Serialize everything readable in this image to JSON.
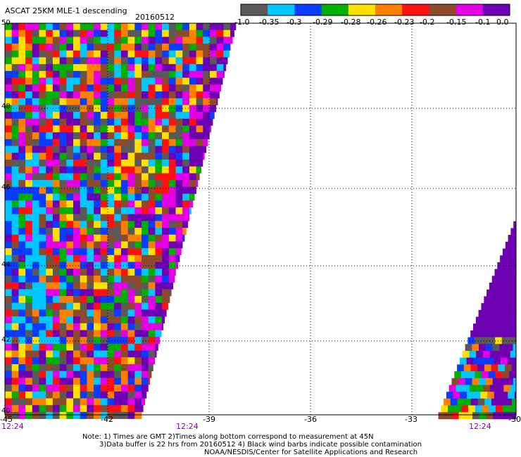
{
  "header": {
    "title": "ASCAT 25KM MLE-1 descending",
    "date": "20160512"
  },
  "colorbar": {
    "colors": [
      "#595959",
      "#00c8ff",
      "#0a3cff",
      "#00b000",
      "#ffe000",
      "#ff8000",
      "#ff1010",
      "#8c4a2a",
      "#e600e6",
      "#6e00b4"
    ],
    "labels": [
      "-1.0",
      "-0.35",
      "-0.3",
      "-0.29",
      "-0.28",
      "-0.26",
      "-0.23",
      "-0.2",
      "-0.15",
      "-0.1",
      "0.0"
    ]
  },
  "axes": {
    "lon_ticks": [
      "-45",
      "-42",
      "-39",
      "-36",
      "-33",
      "-30"
    ],
    "lat_ticks": [
      "50",
      "48",
      "46",
      "44",
      "42",
      "40"
    ],
    "times": [
      "12:24",
      "12:24",
      "12:24"
    ]
  },
  "notes": [
    "Note: 1) Times are GMT 2)Times along bottom correspond to measurement at 45N",
    "3)Data buffer is 22 hrs from 20160512 4) Black wind barbs indicate possible contamination",
    "NOAA/NESDIS/Center for Satellite Applications and Research"
  ]
}
